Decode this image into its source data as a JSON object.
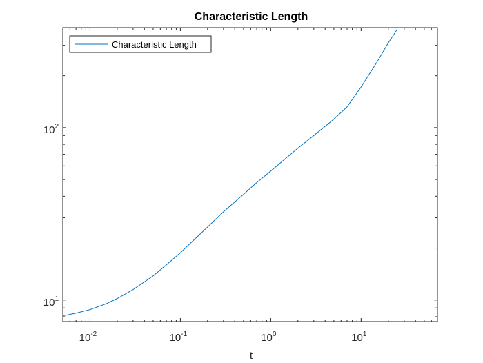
{
  "chart_data": {
    "type": "line",
    "title": "Characteristic Length",
    "xlabel": "t",
    "ylabel": "",
    "x_scale": "log",
    "y_scale": "log",
    "xlim": [
      0.005,
      70
    ],
    "ylim": [
      7.5,
      380
    ],
    "x_ticks": [
      {
        "value": 0.01,
        "base": "10",
        "exp": "-2"
      },
      {
        "value": 0.1,
        "base": "10",
        "exp": "-1"
      },
      {
        "value": 1,
        "base": "10",
        "exp": "0"
      },
      {
        "value": 10,
        "base": "10",
        "exp": "1"
      }
    ],
    "y_ticks": [
      {
        "value": 10,
        "base": "10",
        "exp": "1"
      },
      {
        "value": 100,
        "base": "10",
        "exp": "2"
      }
    ],
    "grid": false,
    "legend_position": "top-left",
    "series": [
      {
        "name": "Characteristic Length",
        "color": "#0072BD",
        "x": [
          0.005,
          0.007,
          0.01,
          0.015,
          0.02,
          0.03,
          0.05,
          0.07,
          0.1,
          0.15,
          0.2,
          0.3,
          0.5,
          0.7,
          1,
          1.5,
          2,
          3,
          5,
          7,
          10,
          15,
          20,
          25
        ],
        "y": [
          8.1,
          8.4,
          8.8,
          9.5,
          10.2,
          11.5,
          13.8,
          16.0,
          18.8,
          23.0,
          26.5,
          32.5,
          41,
          48,
          56,
          67,
          76,
          90,
          112,
          132,
          172,
          240,
          310,
          370
        ]
      }
    ]
  }
}
